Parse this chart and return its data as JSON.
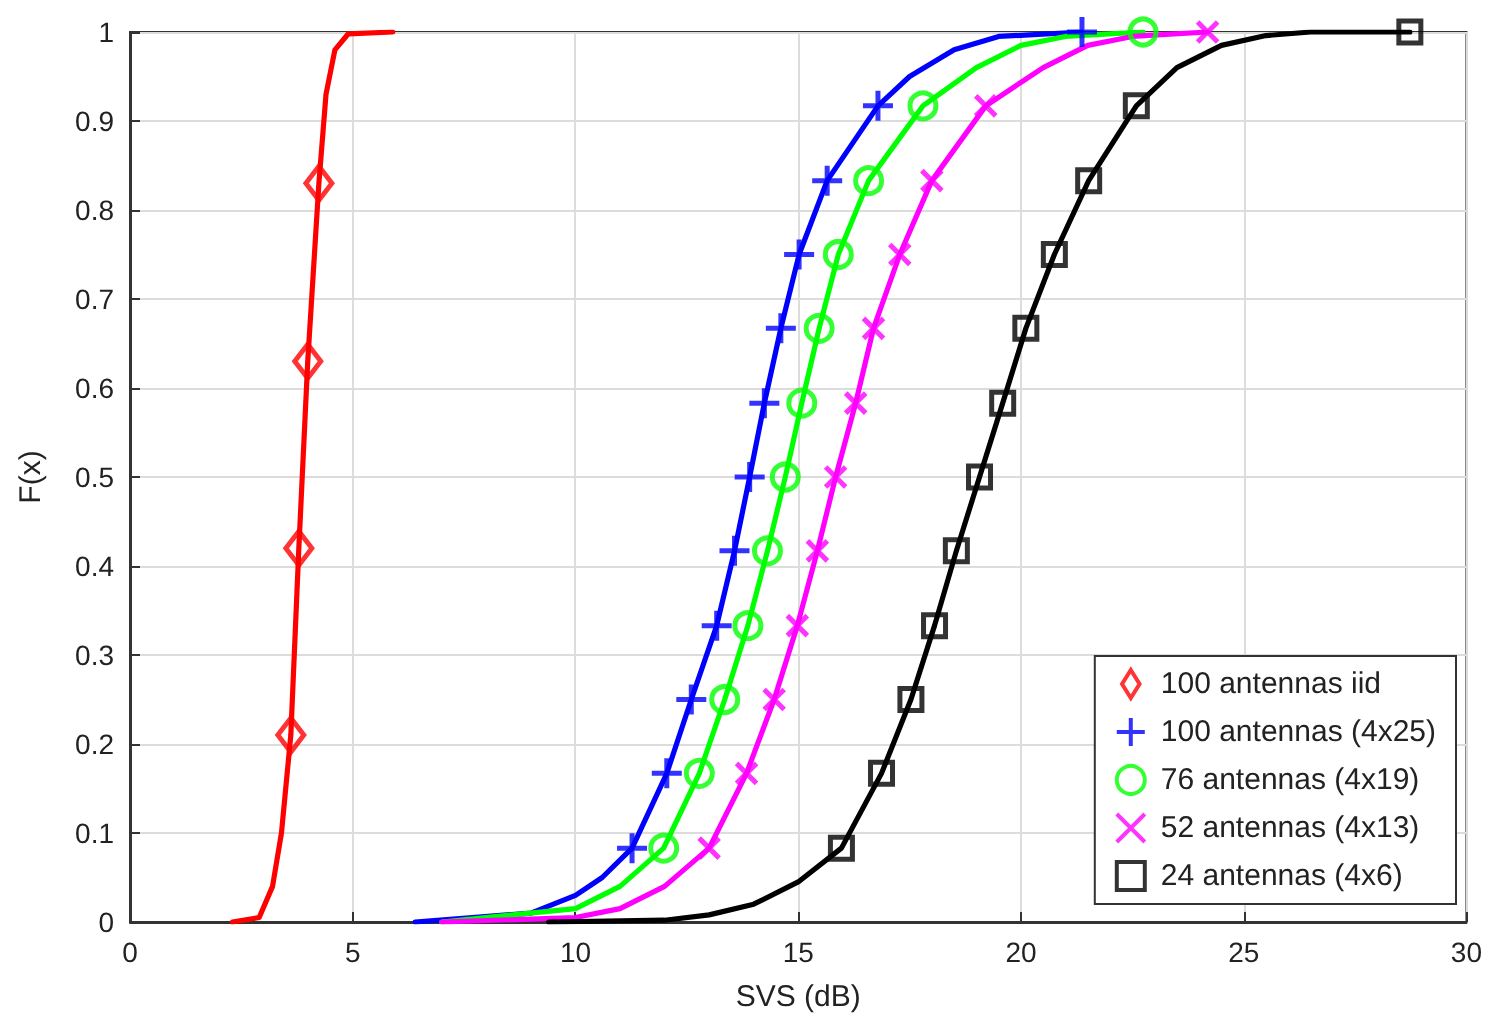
{
  "chart_data": {
    "type": "scatter",
    "xlabel": "SVS (dB)",
    "ylabel": "F(x)",
    "xlim": [
      0,
      30
    ],
    "xticks": [
      0,
      5,
      10,
      15,
      20,
      25,
      30
    ],
    "ylim": [
      0,
      1
    ],
    "yticks": [
      0,
      0.1,
      0.2,
      0.3,
      0.4,
      0.5,
      0.6,
      0.7,
      0.8,
      0.9,
      1
    ],
    "grid": true,
    "legend": "bottom right",
    "series": [
      {
        "type": "line",
        "marker": "none",
        "color": "#ff0000",
        "x": [
          2.3,
          2.9,
          3.2,
          3.4,
          3.61,
          3.79,
          3.99,
          4.24,
          4.4,
          4.6,
          4.9,
          5.9
        ],
        "values": [
          0,
          0.005,
          0.04,
          0.1,
          0.21,
          0.42,
          0.63,
          0.83,
          0.93,
          0.98,
          0.998,
          1
        ]
      },
      {
        "type": "line",
        "marker": "none",
        "color": "#0000ff",
        "x": [
          6.4,
          9,
          10,
          10.6,
          11.27,
          12.05,
          12.6,
          13.17,
          13.57,
          13.91,
          14.24,
          14.61,
          15.02,
          15.65,
          16.79,
          17.5,
          18.5,
          19.5,
          21.37
        ],
        "values": [
          0,
          0.01,
          0.03,
          0.05,
          0.083,
          0.167,
          0.25,
          0.333,
          0.417,
          0.5,
          0.583,
          0.667,
          0.75,
          0.833,
          0.917,
          0.95,
          0.98,
          0.995,
          1
        ]
      },
      {
        "type": "line",
        "marker": "none",
        "color": "#00ff00",
        "x": [
          7,
          10,
          11,
          11.98,
          12.78,
          13.35,
          13.87,
          14.31,
          14.71,
          15.08,
          15.47,
          15.9,
          16.58,
          17.8,
          19,
          20,
          21,
          22.74
        ],
        "values": [
          0,
          0.015,
          0.04,
          0.083,
          0.167,
          0.25,
          0.333,
          0.417,
          0.5,
          0.583,
          0.667,
          0.75,
          0.833,
          0.917,
          0.96,
          0.985,
          0.995,
          1
        ]
      },
      {
        "type": "line",
        "marker": "none",
        "color": "#ff00ff",
        "x": [
          7,
          10,
          11,
          12,
          13,
          13.84,
          14.46,
          14.98,
          15.43,
          15.84,
          16.29,
          16.69,
          17.28,
          18,
          19.21,
          20.5,
          21.5,
          22.5,
          24.19
        ],
        "values": [
          0,
          0.005,
          0.015,
          0.04,
          0.083,
          0.167,
          0.25,
          0.333,
          0.417,
          0.5,
          0.583,
          0.667,
          0.75,
          0.833,
          0.917,
          0.96,
          0.985,
          0.995,
          1
        ]
      },
      {
        "type": "line",
        "marker": "none",
        "color": "#000000",
        "x": [
          9.4,
          12,
          13,
          14,
          15,
          15.97,
          16.87,
          17.53,
          18.06,
          18.55,
          19.07,
          19.59,
          20.11,
          20.75,
          21.52,
          22.59,
          23.5,
          24.5,
          25.5,
          26.5,
          28.73
        ],
        "values": [
          0,
          0.002,
          0.008,
          0.02,
          0.045,
          0.083,
          0.167,
          0.25,
          0.333,
          0.417,
          0.5,
          0.583,
          0.667,
          0.75,
          0.833,
          0.917,
          0.96,
          0.985,
          0.996,
          1,
          1
        ]
      },
      {
        "name": "100 antennas iid",
        "type": "scatter",
        "marker": "diamond",
        "color": "#ff0000",
        "x": [
          3.61,
          3.79,
          3.99,
          4.24
        ],
        "values": [
          0.21,
          0.42,
          0.63,
          0.83
        ]
      },
      {
        "name": "100 antennas (4x25)",
        "type": "scatter",
        "marker": "plus",
        "color": "#0000ff",
        "x": [
          11.27,
          12.05,
          12.6,
          13.17,
          13.57,
          13.91,
          14.24,
          14.61,
          15.02,
          15.65,
          16.79,
          21.37
        ],
        "values": [
          0.083,
          0.167,
          0.25,
          0.333,
          0.417,
          0.5,
          0.583,
          0.667,
          0.75,
          0.833,
          0.917,
          1
        ]
      },
      {
        "name": "76 antennas (4x19)",
        "type": "scatter",
        "marker": "circle",
        "color": "#00ff00",
        "x": [
          11.98,
          12.78,
          13.35,
          13.87,
          14.31,
          14.71,
          15.08,
          15.47,
          15.9,
          16.58,
          17.8,
          22.74
        ],
        "values": [
          0.083,
          0.167,
          0.25,
          0.333,
          0.417,
          0.5,
          0.583,
          0.667,
          0.75,
          0.833,
          0.917,
          1
        ]
      },
      {
        "name": "52 antennas (4x13)",
        "type": "scatter",
        "marker": "cross",
        "color": "#ff00ff",
        "x": [
          13,
          13.84,
          14.46,
          14.98,
          15.43,
          15.84,
          16.29,
          16.69,
          17.28,
          18,
          19.21,
          24.19
        ],
        "values": [
          0.083,
          0.167,
          0.25,
          0.333,
          0.417,
          0.5,
          0.583,
          0.667,
          0.75,
          0.833,
          0.917,
          1
        ]
      },
      {
        "name": "24 antennas (4x6)",
        "type": "scatter",
        "marker": "square",
        "color": "#000000",
        "x": [
          15.97,
          16.87,
          17.53,
          18.06,
          18.55,
          19.07,
          19.59,
          20.11,
          20.75,
          21.52,
          22.59,
          28.73
        ],
        "values": [
          0.083,
          0.167,
          0.25,
          0.333,
          0.417,
          0.5,
          0.583,
          0.667,
          0.75,
          0.833,
          0.917,
          1
        ]
      }
    ]
  }
}
